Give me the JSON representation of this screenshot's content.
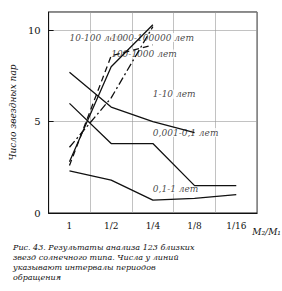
{
  "chart_data": {
    "type": "line",
    "caption": "Рис. 43. Результаты анализа 123 близких звезд солнечного типа. Числа у линий указывают интервалы периодов обращения",
    "x_label": "M₂/M₁",
    "y_label": "Число звездных пар",
    "categories": [
      "1",
      "1/2",
      "1/4",
      "1/8",
      "1/16"
    ],
    "ylim": [
      0,
      11
    ],
    "yticks": [
      0,
      5,
      10
    ],
    "grid": true,
    "color": "#111111",
    "series": [
      {
        "name": "10-100 лет",
        "line_style": "dashdot",
        "values": [
          3.6,
          6.3,
          10.2,
          null,
          null
        ]
      },
      {
        "name": "100-1000 лет",
        "line_style": "solid",
        "values": [
          2.8,
          8.0,
          10.3,
          null,
          null
        ]
      },
      {
        "name": "1000-100000 лет",
        "line_style": "dashed",
        "values": [
          2.6,
          8.6,
          9.2,
          null,
          null
        ]
      },
      {
        "name": "1-10 лет",
        "line_style": "solid",
        "values": [
          7.7,
          5.8,
          5.0,
          4.4,
          null
        ]
      },
      {
        "name": "0,001-0,1 лет",
        "line_style": "solid",
        "values": [
          6.0,
          3.8,
          3.8,
          1.5,
          1.5
        ]
      },
      {
        "name": "0,1-1 лет",
        "line_style": "solid",
        "values": [
          2.3,
          1.8,
          0.7,
          0.8,
          1.0
        ]
      }
    ],
    "annotations": [
      {
        "text": "10-100 лет",
        "x": "1",
        "y": 9.6
      },
      {
        "text": "100-1000 лет",
        "x": "1/2",
        "y": 8.7
      },
      {
        "text": "1000-100000 лет",
        "x": "1/2",
        "y": 9.6
      },
      {
        "text": "1-10 лет",
        "x": "1/4",
        "y": 6.5
      },
      {
        "text": "0,001-0,1 лет",
        "x": "1/4",
        "y": 4.4
      },
      {
        "text": "0,1-1 лет",
        "x": "1/4",
        "y": 1.3
      }
    ]
  }
}
